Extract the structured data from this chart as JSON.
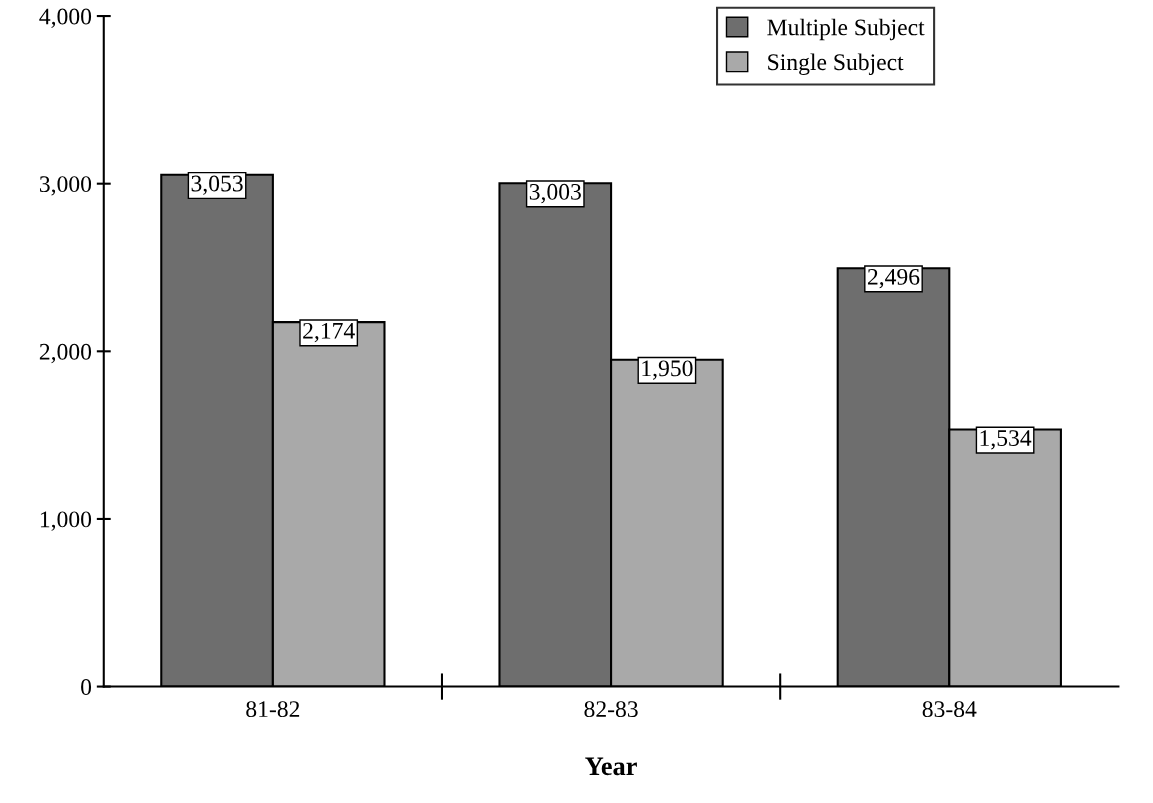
{
  "chart_data": {
    "type": "bar",
    "xlabel": "Year",
    "categories": [
      "81-82",
      "82-83",
      "83-84"
    ],
    "series": [
      {
        "name": "Multiple Subject",
        "color": "#6e6e6e",
        "values": [
          3053,
          3003,
          2496
        ],
        "value_labels": [
          "3,053",
          "3,003",
          "2,496"
        ]
      },
      {
        "name": "Single Subject",
        "color": "#a9a9a9",
        "values": [
          2174,
          1950,
          1534
        ],
        "value_labels": [
          "2,174",
          "1,950",
          "1,534"
        ]
      }
    ],
    "ylim": [
      0,
      4000
    ],
    "yticks": [
      {
        "value": 0,
        "label": "0"
      },
      {
        "value": 1000,
        "label": "1,000"
      },
      {
        "value": 2000,
        "label": "2,000"
      },
      {
        "value": 3000,
        "label": "3,000"
      },
      {
        "value": 4000,
        "label": "4,000"
      }
    ],
    "grid": false,
    "legend": "top right"
  }
}
